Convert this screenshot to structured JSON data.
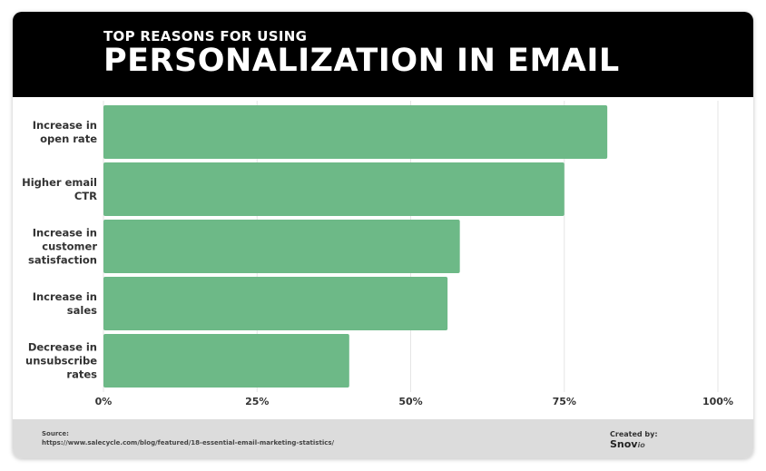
{
  "header": {
    "subtitle": "TOP REASONS FOR USING",
    "title": "PERSONALIZATION IN EMAIL"
  },
  "chart_data": {
    "type": "bar",
    "orientation": "horizontal",
    "categories": [
      [
        "Increase in",
        "open rate"
      ],
      [
        "Higher email",
        "CTR"
      ],
      [
        "Increase in",
        "customer",
        "satisfaction"
      ],
      [
        "Increase in",
        "sales"
      ],
      [
        "Decrease in",
        "unsubscribe",
        "rates"
      ]
    ],
    "values": [
      82,
      75,
      58,
      56,
      40
    ],
    "xlim": [
      0,
      100
    ],
    "x_ticks": [
      "0%",
      "25%",
      "50%",
      "75%",
      "100%"
    ],
    "grid": "vertical",
    "bar_color": "#6db987",
    "grid_color": "#e5e5e5"
  },
  "footer": {
    "source_label": "Source:",
    "source_url": "https://www.salecycle.com/blog/featured/18-essential-email-marketing-statistics/",
    "created_by": "Created by:",
    "brand_name": "Snov",
    "brand_suffix": "io"
  }
}
